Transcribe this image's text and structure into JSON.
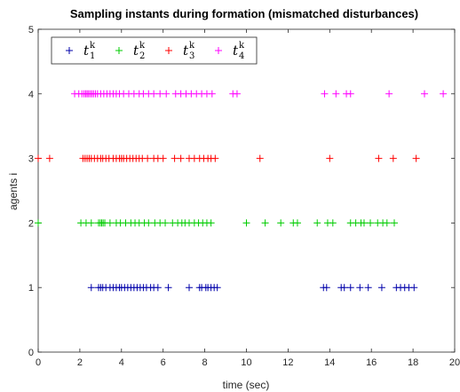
{
  "chart_data": {
    "type": "scatter",
    "title": "Sampling instants during formation (mismatched disturbances)",
    "xlabel": "time (sec)",
    "ylabel": "agents i",
    "xlim": [
      0,
      20
    ],
    "ylim": [
      0,
      5
    ],
    "xticks": [
      "0",
      "2",
      "4",
      "6",
      "8",
      "10",
      "12",
      "14",
      "16",
      "18",
      "20"
    ],
    "yticks": [
      "0",
      "1",
      "2",
      "3",
      "4",
      "5"
    ],
    "grid": false,
    "legend": {
      "location": "top-left",
      "entries": [
        {
          "symbol": "t",
          "subscript": "1",
          "superscript": "k"
        },
        {
          "symbol": "t",
          "subscript": "2",
          "superscript": "k"
        },
        {
          "symbol": "t",
          "subscript": "3",
          "superscript": "k"
        },
        {
          "symbol": "t",
          "subscript": "4",
          "superscript": "k"
        }
      ]
    },
    "series": [
      {
        "name": "t_1^k",
        "color": "#0000aa",
        "y": 1,
        "x": [
          2.55,
          2.9,
          3.0,
          3.1,
          3.25,
          3.45,
          3.6,
          3.75,
          3.9,
          4.0,
          4.15,
          4.3,
          4.45,
          4.6,
          4.75,
          4.9,
          5.05,
          5.2,
          5.4,
          5.55,
          5.75,
          6.25,
          7.25,
          7.75,
          7.85,
          8.05,
          8.15,
          8.3,
          8.45,
          8.6,
          13.7,
          13.85,
          14.55,
          14.7,
          15.0,
          15.45,
          15.85,
          16.5,
          17.2,
          17.4,
          17.6,
          17.8,
          18.05
        ]
      },
      {
        "name": "t_2^k",
        "color": "#00cc00",
        "y": 2,
        "x": [
          0.0,
          2.05,
          2.3,
          2.55,
          2.9,
          2.98,
          3.05,
          3.12,
          3.2,
          3.45,
          3.75,
          3.95,
          4.2,
          4.45,
          4.65,
          4.85,
          5.1,
          5.3,
          5.6,
          5.85,
          6.1,
          6.45,
          6.7,
          6.9,
          7.05,
          7.25,
          7.5,
          7.7,
          7.9,
          8.1,
          8.3,
          10.0,
          10.9,
          11.65,
          12.25,
          12.45,
          13.4,
          13.9,
          14.15,
          15.0,
          15.25,
          15.5,
          15.65,
          15.95,
          16.3,
          16.55,
          16.75,
          17.1
        ]
      },
      {
        "name": "t_3^k",
        "color": "#ff0000",
        "y": 3,
        "x": [
          0.0,
          0.55,
          2.15,
          2.25,
          2.35,
          2.45,
          2.55,
          2.7,
          2.85,
          3.0,
          3.1,
          3.25,
          3.4,
          3.6,
          3.75,
          3.9,
          4.0,
          4.1,
          4.25,
          4.4,
          4.55,
          4.7,
          4.85,
          5.0,
          5.25,
          5.55,
          5.75,
          6.0,
          6.55,
          6.85,
          7.25,
          7.5,
          7.75,
          7.95,
          8.15,
          8.3,
          8.5,
          10.65,
          14.0,
          16.35,
          17.05,
          18.15
        ]
      },
      {
        "name": "t_4^k",
        "color": "#ff00ff",
        "y": 4,
        "x": [
          1.75,
          1.95,
          2.1,
          2.2,
          2.28,
          2.35,
          2.42,
          2.5,
          2.58,
          2.66,
          2.75,
          2.85,
          3.0,
          3.15,
          3.3,
          3.45,
          3.6,
          3.75,
          3.9,
          4.1,
          4.35,
          4.6,
          4.85,
          5.05,
          5.3,
          5.55,
          5.85,
          6.15,
          6.6,
          6.85,
          7.1,
          7.35,
          7.6,
          7.85,
          8.1,
          8.35,
          9.35,
          9.55,
          13.75,
          14.3,
          14.8,
          15.0,
          16.85,
          18.55,
          19.45
        ]
      }
    ]
  }
}
